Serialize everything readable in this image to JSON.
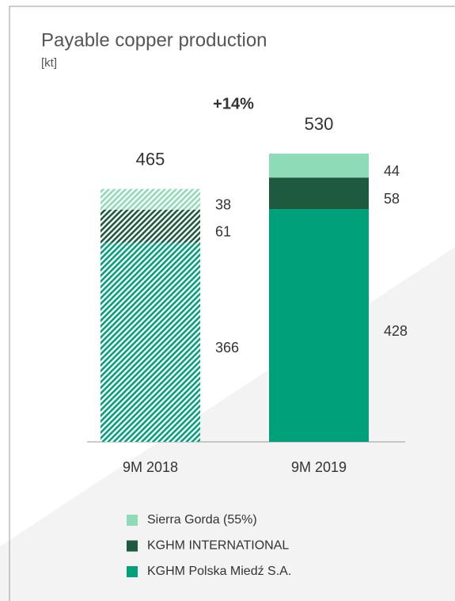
{
  "chart_data": {
    "type": "stacked_bar",
    "title": "Payable copper production",
    "subtitle": "[kt]",
    "annotation": "+14%",
    "categories": [
      "9M 2018",
      "9M 2019"
    ],
    "series": [
      {
        "name": "KGHM Polska Miedź S.A.",
        "color": "#00a07a",
        "values": [
          366,
          428
        ]
      },
      {
        "name": "KGHM INTERNATIONAL",
        "color": "#1e5a40",
        "values": [
          61,
          58
        ]
      },
      {
        "name": "Sierra Gorda (55%)",
        "color": "#8ddcb7",
        "values": [
          38,
          44
        ]
      }
    ],
    "totals": [
      465,
      530
    ],
    "hatched": [
      true,
      false
    ]
  }
}
